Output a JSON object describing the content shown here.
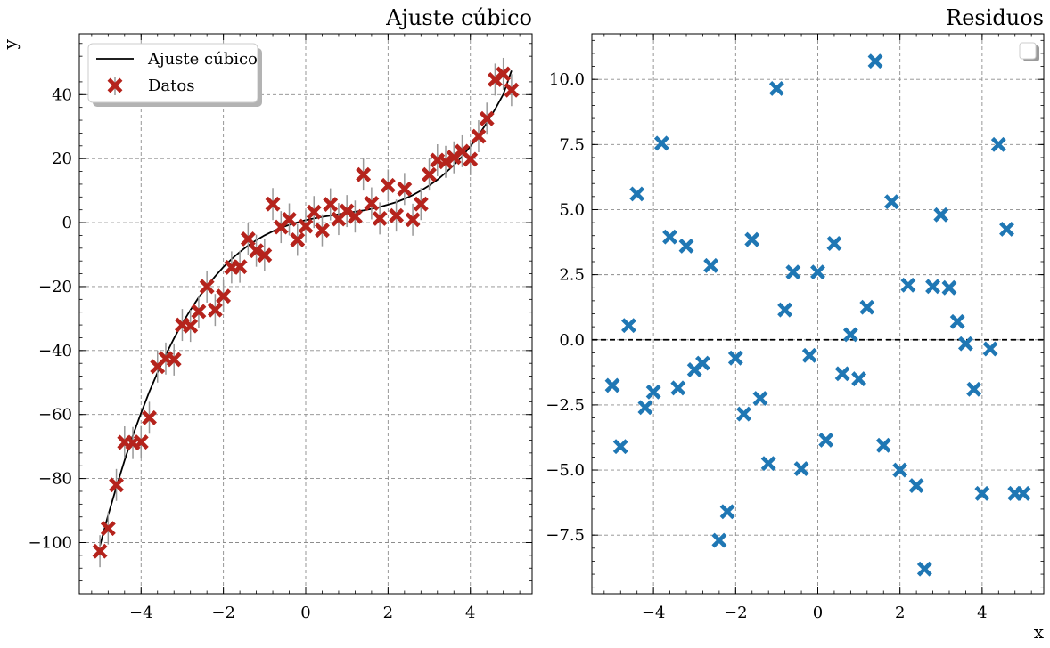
{
  "chart_data": [
    {
      "type": "scatter",
      "title": "Ajuste cúbico",
      "xlabel": "",
      "ylabel": "y",
      "xlim": [
        -5.5,
        5.5
      ],
      "ylim": [
        -116,
        59
      ],
      "xticks": [
        -4,
        -2,
        0,
        2,
        4
      ],
      "yticks": [
        -100,
        -80,
        -60,
        -40,
        -20,
        0,
        20,
        40
      ],
      "grid": true,
      "legend": {
        "placement": "top-left",
        "entries": [
          "Ajuste cúbico",
          "Datos"
        ]
      },
      "series": [
        {
          "name": "Ajuste cúbico",
          "kind": "line",
          "color": "#000000",
          "x": [
            -5.0,
            -4.8,
            -4.6,
            -4.4,
            -4.2,
            -4.0,
            -3.8,
            -3.6,
            -3.4,
            -3.2,
            -3.0,
            -2.8,
            -2.6,
            -2.4,
            -2.2,
            -2.0,
            -1.8,
            -1.6,
            -1.4,
            -1.2,
            -1.0,
            -0.8,
            -0.6,
            -0.4,
            -0.2,
            0.0,
            0.2,
            0.4,
            0.6,
            0.8,
            1.0,
            1.2,
            1.4,
            1.6,
            1.8,
            2.0,
            2.2,
            2.4,
            2.6,
            2.8,
            3.0,
            3.2,
            3.4,
            3.6,
            3.8,
            4.0,
            4.2,
            4.4,
            4.6,
            4.8,
            5.0
          ],
          "y": [
            -101,
            -91.5,
            -82.6,
            -74.3,
            -66.6,
            -59.5,
            -52.9,
            -46.9,
            -41.3,
            -36.2,
            -31.5,
            -27.3,
            -23.4,
            -19.9,
            -16.8,
            -13.9,
            -11.4,
            -9.2,
            -7.2,
            -5.5,
            -4.0,
            -2.7,
            -1.6,
            -0.7,
            0.1,
            0.8,
            1.3,
            1.8,
            2.2,
            2.6,
            3.0,
            3.4,
            3.8,
            4.3,
            4.9,
            5.6,
            6.4,
            7.4,
            8.6,
            10.0,
            11.6,
            13.4,
            15.6,
            18.0,
            20.7,
            23.8,
            27.3,
            31.2,
            35.4,
            40.1,
            47.5
          ]
        },
        {
          "name": "Datos",
          "kind": "errorbar",
          "color": "#b5231c",
          "yerr": 5,
          "x": [
            -5.0,
            -4.8,
            -4.6,
            -4.4,
            -4.2,
            -4.0,
            -3.8,
            -3.6,
            -3.4,
            -3.2,
            -3.0,
            -2.8,
            -2.6,
            -2.4,
            -2.2,
            -2.0,
            -1.8,
            -1.6,
            -1.4,
            -1.2,
            -1.0,
            -0.8,
            -0.6,
            -0.4,
            -0.2,
            0.0,
            0.2,
            0.4,
            0.6,
            0.8,
            1.0,
            1.2,
            1.4,
            1.6,
            1.8,
            2.0,
            2.2,
            2.4,
            2.6,
            2.8,
            3.0,
            3.2,
            3.4,
            3.6,
            3.8,
            4.0,
            4.2,
            4.4,
            4.6,
            4.8,
            5.0
          ],
          "y": [
            -102.7,
            -95.6,
            -82.0,
            -68.7,
            -68.9,
            -68.6,
            -61.0,
            -45.0,
            -42.5,
            -42.8,
            -32.0,
            -32.3,
            -27.8,
            -20.0,
            -27.3,
            -23.0,
            -14.0,
            -13.8,
            -5.1,
            -8.8,
            -10.2,
            5.8,
            -1.4,
            1.0,
            -5.4,
            -1.1,
            3.3,
            -2.4,
            5.7,
            1.1,
            3.6,
            1.9,
            15.0,
            6.0,
            1.3,
            11.6,
            2.2,
            10.5,
            0.9,
            5.8,
            15.0,
            19.5,
            19.0,
            20.4,
            22.3,
            19.8,
            27.0,
            32.5,
            44.7,
            46.5,
            41.4
          ]
        }
      ]
    },
    {
      "type": "scatter",
      "title": "Residuos",
      "xlabel": "x",
      "ylabel": "",
      "xlim": [
        -5.5,
        5.5
      ],
      "ylim": [
        -9.75,
        11.75
      ],
      "xticks": [
        -4,
        -2,
        0,
        2,
        4
      ],
      "yticks": [
        -7.5,
        -5.0,
        -2.5,
        0.0,
        2.5,
        5.0,
        7.5,
        10.0
      ],
      "grid": true,
      "legend": {
        "placement": "top-right",
        "entries": []
      },
      "reference_line": {
        "y": 0,
        "style": "dashed",
        "color": "#000000"
      },
      "series": [
        {
          "kind": "scatter",
          "color": "#1f77b4",
          "x": [
            -5.0,
            -4.8,
            -4.6,
            -4.4,
            -4.2,
            -4.0,
            -3.8,
            -3.6,
            -3.4,
            -3.2,
            -3.0,
            -2.8,
            -2.6,
            -2.4,
            -2.2,
            -2.0,
            -1.8,
            -1.6,
            -1.4,
            -1.2,
            -1.0,
            -0.8,
            -0.6,
            -0.4,
            -0.2,
            0.0,
            0.2,
            0.4,
            0.6,
            0.8,
            1.0,
            1.2,
            1.4,
            1.6,
            1.8,
            2.0,
            2.2,
            2.4,
            2.6,
            2.8,
            3.0,
            3.2,
            3.4,
            3.6,
            3.8,
            4.0,
            4.2,
            4.4,
            4.6,
            4.8,
            5.0
          ],
          "y": [
            -1.75,
            -4.1,
            0.55,
            5.6,
            -2.6,
            -2.0,
            7.55,
            3.95,
            -1.85,
            3.6,
            -1.15,
            -0.9,
            2.85,
            -7.7,
            -6.6,
            -0.7,
            -2.85,
            3.85,
            -2.25,
            -4.75,
            9.65,
            1.15,
            2.6,
            -4.95,
            -0.6,
            2.6,
            -3.85,
            3.7,
            -1.3,
            0.2,
            -1.5,
            1.25,
            10.7,
            -4.05,
            5.3,
            -5.0,
            2.1,
            -5.6,
            -8.8,
            2.05,
            4.8,
            2.0,
            0.7,
            -0.15,
            -1.9,
            -5.9,
            -0.35,
            7.5,
            4.25,
            -5.9,
            -5.9
          ]
        }
      ]
    }
  ]
}
